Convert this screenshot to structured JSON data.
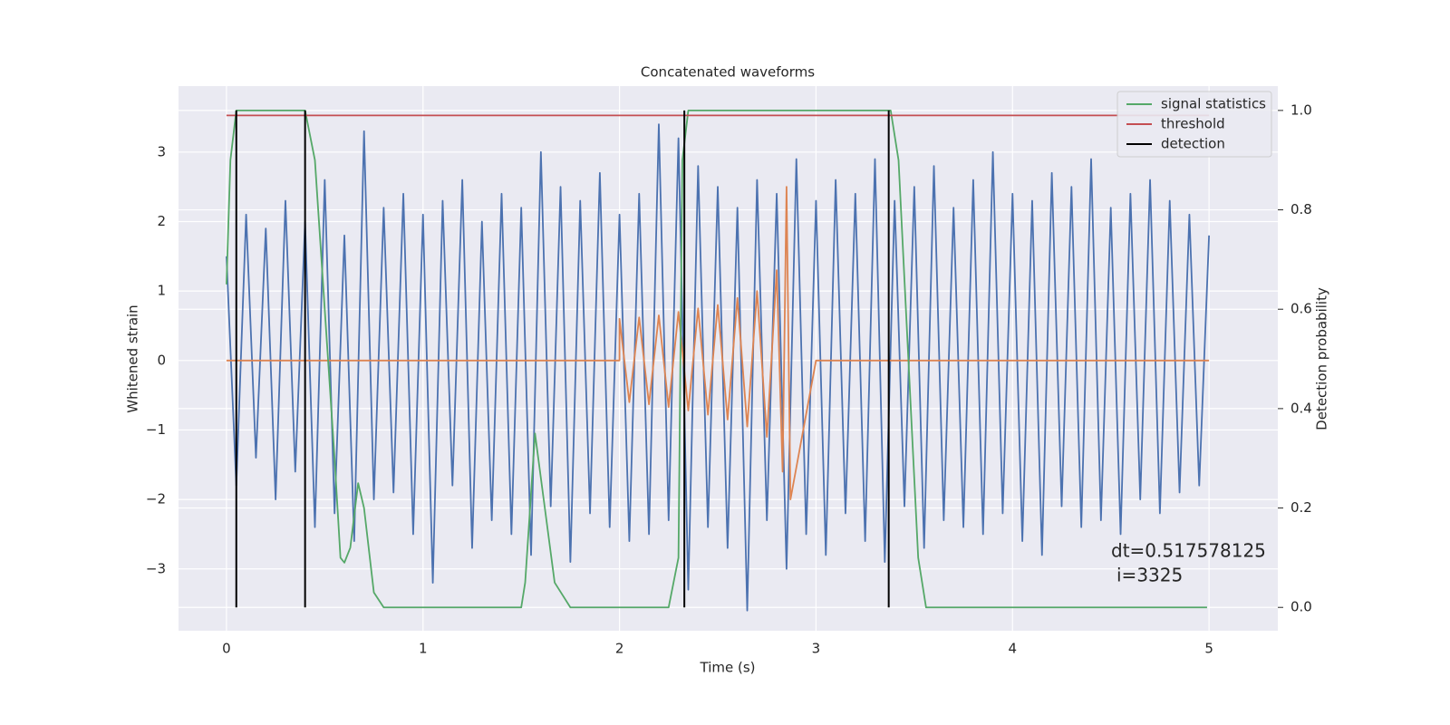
{
  "chart_data": {
    "type": "line",
    "title": "Concatenated waveforms",
    "xlabel": "Time (s)",
    "ylabel": "Whitened strain",
    "y2label": "Detection probability",
    "xlim": [
      -0.244,
      5.35
    ],
    "ylim": [
      -3.89,
      3.95
    ],
    "y2lim": [
      -0.047,
      1.049
    ],
    "xticks": [
      0,
      1,
      2,
      3,
      4,
      5
    ],
    "yticks": [
      {
        "value": -3,
        "label": "−3"
      },
      {
        "value": -2,
        "label": "−2"
      },
      {
        "value": -1,
        "label": "−1"
      },
      0,
      1,
      2,
      3
    ],
    "y2ticks": [
      {
        "value": 0,
        "label": "0.0"
      },
      0.2,
      0.4,
      0.6,
      0.8,
      {
        "value": 1,
        "label": "1.0"
      }
    ],
    "grid": true,
    "legend": "upper right",
    "annotation": [
      "dt=0.517578125",
      "i=3325"
    ],
    "series": [
      {
        "color": "#4c72b0",
        "x": [
          0,
          0.05,
          0.1,
          0.15,
          0.2,
          0.25,
          0.3,
          0.35,
          0.4,
          0.45,
          0.5,
          0.55,
          0.6,
          0.65,
          0.7,
          0.75,
          0.8,
          0.85,
          0.9,
          0.95,
          1,
          1.05,
          1.1,
          1.15,
          1.2,
          1.25,
          1.3,
          1.35,
          1.4,
          1.45,
          1.5,
          1.55,
          1.6,
          1.65,
          1.7,
          1.75,
          1.8,
          1.85,
          1.9,
          1.95,
          2,
          2.05,
          2.1,
          2.15,
          2.2,
          2.25,
          2.3,
          2.35,
          2.4,
          2.45,
          2.5,
          2.55,
          2.6,
          2.65,
          2.7,
          2.75,
          2.8,
          2.85,
          2.9,
          2.95,
          3,
          3.05,
          3.1,
          3.15,
          3.2,
          3.25,
          3.3,
          3.35,
          3.4,
          3.45,
          3.5,
          3.55,
          3.6,
          3.65,
          3.7,
          3.75,
          3.8,
          3.85,
          3.9,
          3.95,
          4,
          4.05,
          4.1,
          4.15,
          4.2,
          4.25,
          4.3,
          4.35,
          4.4,
          4.45,
          4.5,
          4.55,
          4.6,
          4.65,
          4.7,
          4.75,
          4.8,
          4.85,
          4.9,
          4.95,
          5
        ],
        "values": [
          1.5,
          -1.8,
          2.1,
          -1.4,
          1.9,
          -2.0,
          2.3,
          -1.6,
          2.0,
          -2.4,
          2.6,
          -2.2,
          1.8,
          -2.6,
          3.3,
          -2.0,
          2.2,
          -1.9,
          2.4,
          -2.5,
          2.1,
          -3.2,
          2.3,
          -1.8,
          2.6,
          -2.7,
          2.0,
          -2.3,
          2.4,
          -2.5,
          2.2,
          -2.8,
          3.0,
          -2.1,
          2.5,
          -2.9,
          2.3,
          -2.2,
          2.7,
          -2.4,
          2.1,
          -2.6,
          2.4,
          -2.5,
          3.4,
          -2.3,
          3.2,
          -3.3,
          2.8,
          -2.4,
          2.5,
          -2.7,
          2.2,
          -3.6,
          2.6,
          -2.3,
          2.4,
          -3.0,
          2.9,
          -2.5,
          2.3,
          -2.8,
          2.6,
          -2.2,
          2.4,
          -2.6,
          2.9,
          -2.9,
          2.3,
          -2.1,
          2.5,
          -2.7,
          2.8,
          -2.3,
          2.2,
          -2.4,
          2.6,
          -2.5,
          3.0,
          -2.2,
          2.4,
          -2.6,
          2.3,
          -2.8,
          2.7,
          -2.1,
          2.5,
          -2.4,
          2.9,
          -2.3,
          2.2,
          -2.5,
          2.4,
          -2.0,
          2.6,
          -2.2,
          2.3,
          -1.9,
          2.1,
          -1.8,
          1.8
        ]
      },
      {
        "color": "#dd8452",
        "x": [
          0,
          2.0,
          2.0,
          2.05,
          2.1,
          2.15,
          2.2,
          2.25,
          2.3,
          2.35,
          2.4,
          2.45,
          2.5,
          2.55,
          2.6,
          2.65,
          2.7,
          2.75,
          2.8,
          2.83,
          2.85,
          2.87,
          3.0,
          5
        ],
        "values": [
          0,
          0,
          0.6,
          -0.6,
          0.62,
          -0.63,
          0.65,
          -0.67,
          0.7,
          -0.72,
          0.75,
          -0.78,
          0.8,
          -0.85,
          0.9,
          -0.95,
          1.0,
          -1.1,
          1.3,
          -1.6,
          2.5,
          -2.0,
          0,
          0
        ]
      },
      {
        "name": "signal statistics",
        "color": "#55a868",
        "axis": "y2",
        "x": [
          0,
          0.02,
          0.05,
          0.4,
          0.45,
          0.5,
          0.55,
          0.58,
          0.6,
          0.63,
          0.67,
          0.7,
          0.75,
          0.8,
          1.5,
          1.52,
          1.57,
          1.62,
          1.67,
          1.75,
          2.25,
          2.3,
          2.32,
          2.35,
          3.38,
          3.42,
          3.47,
          3.52,
          3.56,
          4.99
        ],
        "values": [
          0.65,
          0.9,
          1.0,
          1.0,
          0.9,
          0.6,
          0.3,
          0.1,
          0.09,
          0.12,
          0.25,
          0.2,
          0.03,
          0.0,
          0.0,
          0.05,
          0.35,
          0.2,
          0.05,
          0.0,
          0.0,
          0.1,
          0.9,
          1.0,
          1.0,
          0.9,
          0.5,
          0.1,
          0.0,
          0.0
        ]
      },
      {
        "name": "threshold",
        "color": "#c44e52",
        "axis": "y2",
        "x": [
          0,
          5
        ],
        "values": [
          0.99,
          0.99
        ]
      },
      {
        "name": "detection",
        "color": "#000000",
        "type": "vline",
        "axis": "y2",
        "x": [
          0.05,
          0.4,
          2.33,
          3.37
        ],
        "span": [
          0,
          1
        ]
      }
    ]
  }
}
